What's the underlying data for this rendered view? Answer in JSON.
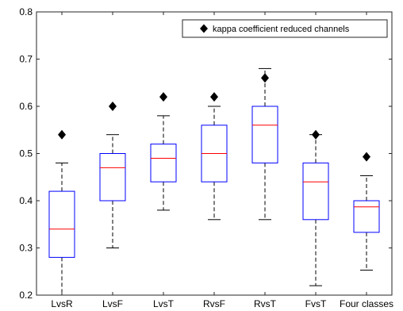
{
  "chart_data": {
    "type": "box",
    "title": "",
    "xlabel": "",
    "ylabel": "",
    "ylim": [
      0.2,
      0.8
    ],
    "yticks": [
      "0.2",
      "0.3",
      "0.4",
      "0.5",
      "0.6",
      "0.7",
      "0.8"
    ],
    "grid": false,
    "legend": {
      "position": "top-right",
      "label": "kappa coefficient reduced channels",
      "marker": "diamond"
    },
    "colors": {
      "box": "#0000ff",
      "median": "#ff0000",
      "whisker": "#000000",
      "marker": "#000000"
    },
    "categories": [
      "LvsR",
      "LvsF",
      "LvsT",
      "RvsF",
      "RvsT",
      "FvsT",
      "Four classes"
    ],
    "boxes": [
      {
        "whisker_low": 0.2,
        "q1": 0.28,
        "median": 0.34,
        "q3": 0.42,
        "whisker_high": 0.48,
        "reduced": 0.54
      },
      {
        "whisker_low": 0.3,
        "q1": 0.4,
        "median": 0.47,
        "q3": 0.5,
        "whisker_high": 0.54,
        "reduced": 0.6
      },
      {
        "whisker_low": 0.38,
        "q1": 0.44,
        "median": 0.49,
        "q3": 0.52,
        "whisker_high": 0.58,
        "reduced": 0.62
      },
      {
        "whisker_low": 0.36,
        "q1": 0.44,
        "median": 0.5,
        "q3": 0.56,
        "whisker_high": 0.6,
        "reduced": 0.62
      },
      {
        "whisker_low": 0.36,
        "q1": 0.48,
        "median": 0.56,
        "q3": 0.6,
        "whisker_high": 0.68,
        "reduced": 0.66
      },
      {
        "whisker_low": 0.22,
        "q1": 0.36,
        "median": 0.44,
        "q3": 0.48,
        "whisker_high": 0.54,
        "reduced": 0.54
      },
      {
        "whisker_low": 0.253,
        "q1": 0.333,
        "median": 0.387,
        "q3": 0.4,
        "whisker_high": 0.453,
        "reduced": 0.493
      }
    ]
  }
}
